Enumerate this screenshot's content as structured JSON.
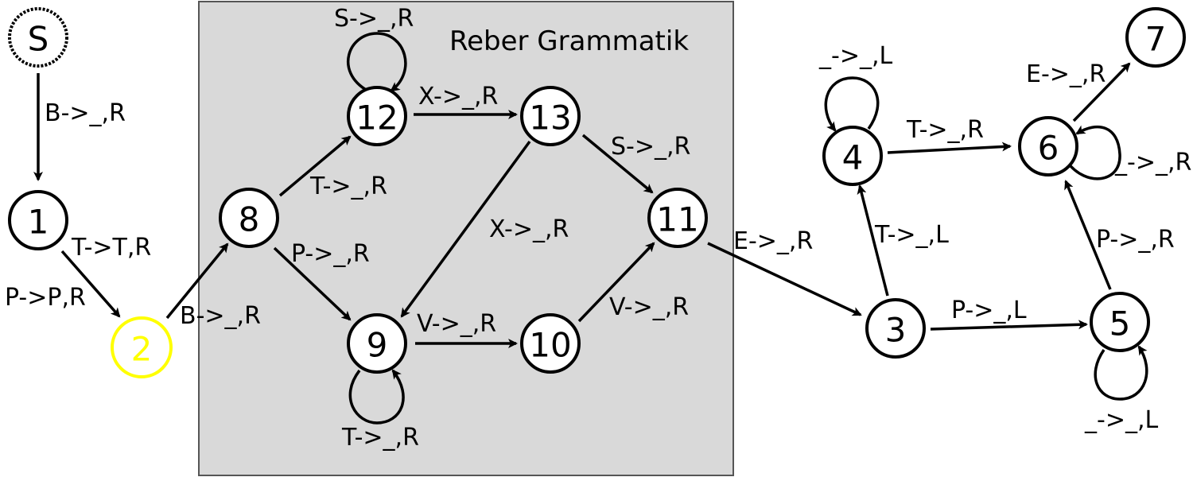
{
  "box": {
    "title": "Reber Grammatik",
    "fill": "#d9d9d9",
    "stroke": "#555555"
  },
  "colors": {
    "highlight": "#ffff00",
    "ink": "#000000"
  },
  "nodes": {
    "S": "S",
    "n1": "1",
    "n2": "2",
    "n3": "3",
    "n4": "4",
    "n5": "5",
    "n6": "6",
    "n7": "7",
    "n8": "8",
    "n9": "9",
    "n10": "10",
    "n11": "11",
    "n12": "12",
    "n13": "13"
  },
  "highlighted_node": "2",
  "edges": {
    "S_1": "B->_,R",
    "1_2_a": "T->T,R",
    "1_2_b": "P->P,R",
    "2_8": "B->_,R",
    "8_12": "T->_,R",
    "8_9": "P->_,R",
    "12_12": "S->_,R",
    "12_13": "X->_,R",
    "13_11": "S->_,R",
    "13_9": "X->_,R",
    "9_9": "T->_,R",
    "9_10": "V->_,R",
    "10_11": "V->_,R",
    "11_3": "E->_,R",
    "3_4": "T->_,L",
    "3_5": "P->_,L",
    "4_4": "_->_,L",
    "4_6": "T->_,R",
    "5_5": "_->_,L",
    "5_6": "P->_,R",
    "6_6": "_->_,R",
    "6_7": "E->_,R"
  }
}
